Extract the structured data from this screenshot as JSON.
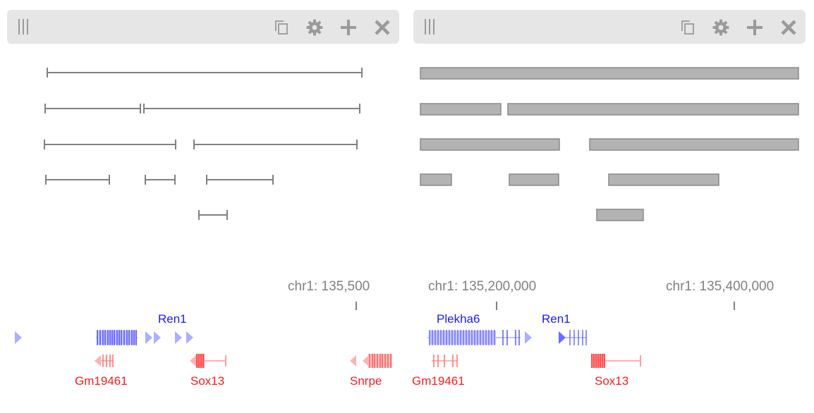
{
  "panels": [
    {
      "id": "left",
      "header_icons": [
        "drag-handle-icon",
        "copy-icon",
        "gear-icon",
        "plus-icon",
        "close-icon"
      ]
    },
    {
      "id": "right",
      "header_icons": [
        "drag-handle-icon",
        "copy-icon",
        "gear-icon",
        "plus-icon",
        "close-icon"
      ]
    }
  ],
  "left_axis": {
    "label": "chr1: 135,500"
  },
  "right_axis": {
    "labels": [
      "chr1: 135,200,000",
      "chr1: 135,400,000"
    ]
  },
  "genes": {
    "left_plus": [
      "Ren1"
    ],
    "left_minus": [
      "Gm19461",
      "Sox13",
      "Snrpe"
    ],
    "right_plus": [
      "Plekha6",
      "Ren1"
    ],
    "right_minus": [
      "Gm19461",
      "Sox13"
    ]
  },
  "colors": {
    "plus_strand": "#1a1aff",
    "minus_strand": "#ff1a1a",
    "interval": "#808080",
    "bar_fill": "#b3b3b3",
    "bar_stroke": "#8a8a8a"
  }
}
